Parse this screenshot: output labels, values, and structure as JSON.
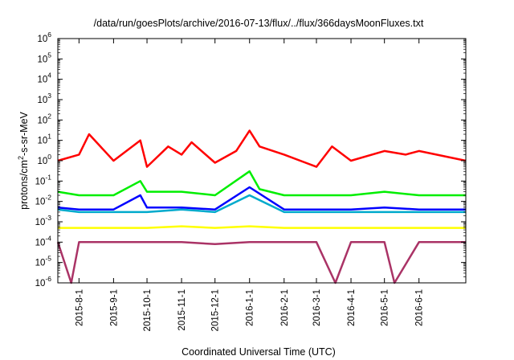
{
  "chart_data": {
    "type": "line",
    "title": "/data/run/goesPlots/archive/2016-07-13/flux/../flux/366daysMoonFluxes.txt",
    "xlabel": "Coordinated Universal Time (UTC)",
    "ylabel": {
      "base": "protons/cm",
      "sup": "2",
      "rest": "-s-sr-MeV"
    },
    "yscale": "log",
    "ylim_exponents": [
      -6,
      6
    ],
    "ytick_base": "10",
    "yticks": [
      "-6",
      "-5",
      "-4",
      "-3",
      "-2",
      "-1",
      "0",
      "1",
      "2",
      "3",
      "4",
      "5",
      "6"
    ],
    "xlim": [
      "2015-07-13",
      "2016-07-13"
    ],
    "xticks": [
      {
        "date": "2015-08-01",
        "label": "2015-8-1"
      },
      {
        "date": "2015-09-01",
        "label": "2015-9-1"
      },
      {
        "date": "2015-10-01",
        "label": "2015-10-1"
      },
      {
        "date": "2015-11-01",
        "label": "2015-11-1"
      },
      {
        "date": "2015-12-01",
        "label": "2015-12-1"
      },
      {
        "date": "2016-01-01",
        "label": "2016-1-1"
      },
      {
        "date": "2016-02-01",
        "label": "2016-2-1"
      },
      {
        "date": "2016-03-01",
        "label": "2016-3-1"
      },
      {
        "date": "2016-04-01",
        "label": "2016-4-1"
      },
      {
        "date": "2016-05-01",
        "label": "2016-5-1"
      },
      {
        "date": "2016-06-01",
        "label": "2016-6-1"
      }
    ],
    "grid": false,
    "legend": "none",
    "series": [
      {
        "color": "#ff0000",
        "x": [
          "2015-07-13",
          "2015-08-01",
          "2015-08-10",
          "2015-09-01",
          "2015-09-25",
          "2015-10-01",
          "2015-10-20",
          "2015-11-01",
          "2015-11-10",
          "2015-12-01",
          "2015-12-20",
          "2016-01-01",
          "2016-01-10",
          "2016-02-01",
          "2016-03-01",
          "2016-03-15",
          "2016-04-01",
          "2016-05-01",
          "2016-05-20",
          "2016-06-01",
          "2016-07-13"
        ],
        "values": [
          1,
          2,
          20,
          1,
          10,
          0.5,
          5,
          2,
          8,
          0.8,
          3,
          30,
          5,
          2,
          0.5,
          5,
          1,
          3,
          2,
          3,
          1
        ]
      },
      {
        "color": "#00ee00",
        "x": [
          "2015-07-13",
          "2015-08-01",
          "2015-09-01",
          "2015-09-25",
          "2015-10-01",
          "2015-11-01",
          "2015-12-01",
          "2016-01-01",
          "2016-01-10",
          "2016-02-01",
          "2016-03-01",
          "2016-04-01",
          "2016-05-01",
          "2016-06-01",
          "2016-07-13"
        ],
        "values": [
          0.03,
          0.02,
          0.02,
          0.1,
          0.03,
          0.03,
          0.02,
          0.3,
          0.04,
          0.02,
          0.02,
          0.02,
          0.03,
          0.02,
          0.02
        ]
      },
      {
        "color": "#00aacc",
        "x": [
          "2015-07-13",
          "2015-08-01",
          "2015-09-01",
          "2015-10-01",
          "2015-11-01",
          "2015-12-01",
          "2016-01-01",
          "2016-02-01",
          "2016-03-01",
          "2016-04-01",
          "2016-05-01",
          "2016-06-01",
          "2016-07-13"
        ],
        "values": [
          0.004,
          0.003,
          0.003,
          0.003,
          0.004,
          0.003,
          0.02,
          0.003,
          0.003,
          0.003,
          0.003,
          0.003,
          0.003
        ]
      },
      {
        "color": "#0000ff",
        "x": [
          "2015-07-13",
          "2015-08-01",
          "2015-09-01",
          "2015-09-25",
          "2015-10-01",
          "2015-11-01",
          "2015-12-01",
          "2016-01-01",
          "2016-02-01",
          "2016-03-01",
          "2016-04-01",
          "2016-05-01",
          "2016-06-01",
          "2016-07-13"
        ],
        "values": [
          0.005,
          0.004,
          0.004,
          0.02,
          0.005,
          0.005,
          0.004,
          0.05,
          0.004,
          0.004,
          0.004,
          0.005,
          0.004,
          0.004
        ]
      },
      {
        "color": "#ffff00",
        "x": [
          "2015-07-13",
          "2015-08-01",
          "2015-09-01",
          "2015-10-01",
          "2015-11-01",
          "2015-12-01",
          "2016-01-01",
          "2016-02-01",
          "2016-03-01",
          "2016-04-01",
          "2016-05-01",
          "2016-06-01",
          "2016-07-13"
        ],
        "values": [
          0.0005,
          0.0005,
          0.0005,
          0.0005,
          0.0006,
          0.0005,
          0.0006,
          0.0005,
          0.0005,
          0.0005,
          0.0005,
          0.0005,
          0.0005
        ]
      },
      {
        "color": "#aa3366",
        "x": [
          "2015-07-13",
          "2015-07-25",
          "2015-08-01",
          "2015-09-01",
          "2015-10-01",
          "2015-11-01",
          "2015-12-01",
          "2016-01-01",
          "2016-02-01",
          "2016-03-01",
          "2016-03-18",
          "2016-04-01",
          "2016-05-01",
          "2016-05-10",
          "2016-06-01",
          "2016-07-13"
        ],
        "values": [
          0.0001,
          1e-06,
          0.0001,
          0.0001,
          0.0001,
          0.0001,
          8e-05,
          0.0001,
          0.0001,
          0.0001,
          1e-06,
          0.0001,
          0.0001,
          1e-06,
          0.0001,
          0.0001
        ]
      }
    ]
  }
}
